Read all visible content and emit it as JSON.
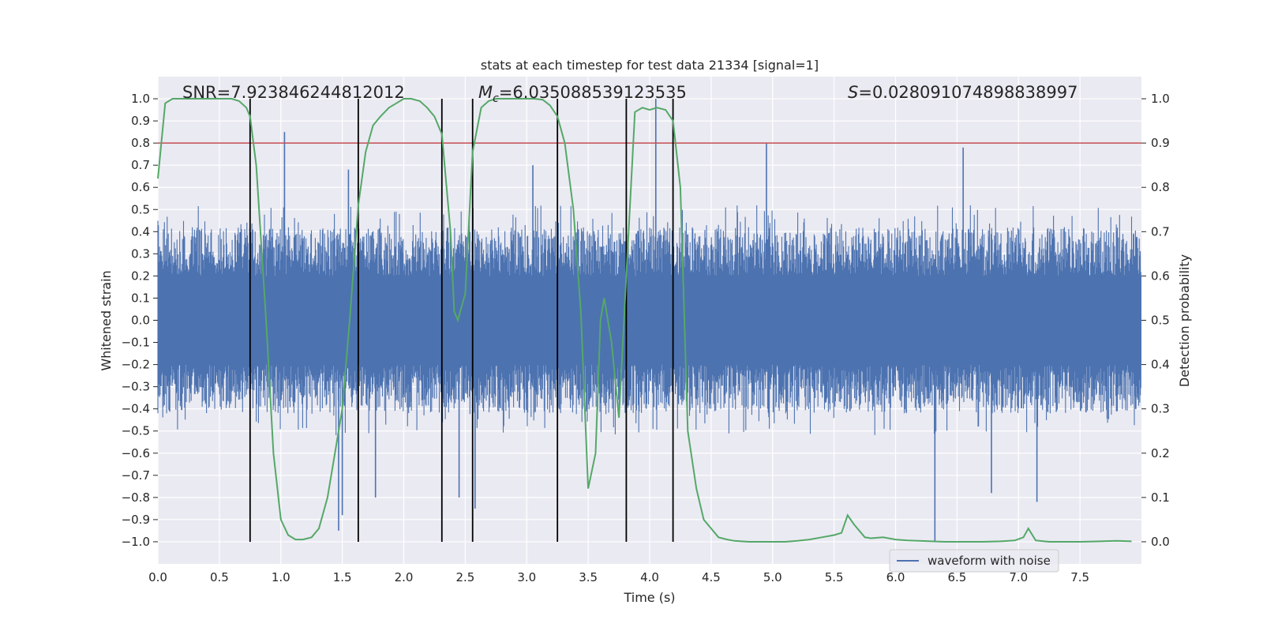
{
  "chart_data": {
    "type": "line",
    "title": "stats at each timestep for test data 21334 [signal=1]",
    "xlabel": "Time (s)",
    "ylabel": "Whitened strain",
    "y2label": "Detection probability",
    "xlim": [
      0.0,
      8.0
    ],
    "ylim": [
      -1.1,
      1.1
    ],
    "y2lim": [
      -0.05,
      1.05
    ],
    "xticks": [
      "0.0",
      "0.5",
      "1.0",
      "1.5",
      "2.0",
      "2.5",
      "3.0",
      "3.5",
      "4.0",
      "4.5",
      "5.0",
      "5.5",
      "6.0",
      "6.5",
      "7.0",
      "7.5"
    ],
    "yticks": [
      "1.0",
      "0.9",
      "0.8",
      "0.7",
      "0.6",
      "0.5",
      "0.4",
      "0.3",
      "0.2",
      "0.1",
      "0.0",
      "−0.1",
      "−0.2",
      "−0.3",
      "−0.4",
      "−0.5",
      "−0.6",
      "−0.7",
      "−0.8",
      "−0.9",
      "−1.0"
    ],
    "y2ticks": [
      "1.0",
      "0.9",
      "0.8",
      "0.7",
      "0.6",
      "0.5",
      "0.4",
      "0.3",
      "0.2",
      "0.1",
      "0.0"
    ],
    "grid": true,
    "annotations": {
      "snr": "SNR=7.923846244812012",
      "mc_symbol": "M",
      "mc_subscript": "c",
      "mc_value": "=6.035088539123535",
      "s_symbol": "S",
      "s_value": "=0.028091074898838997"
    },
    "threshold": 0.9,
    "event_markers": [
      0.75,
      1.63,
      2.31,
      2.56,
      3.25,
      3.81,
      4.19
    ],
    "series": [
      {
        "name": "waveform with noise",
        "color": "#4c72b0",
        "kind": "noise-envelope",
        "core_band": [
          -0.2,
          0.2
        ],
        "typical_peak": 0.42,
        "extreme_positive": [
          [
            1.03,
            0.85
          ],
          [
            4.05,
            1.0
          ],
          [
            4.95,
            0.8
          ],
          [
            6.55,
            0.78
          ],
          [
            1.55,
            0.68
          ],
          [
            3.05,
            0.7
          ]
        ],
        "extreme_negative": [
          [
            6.32,
            -1.0
          ],
          [
            1.47,
            -0.95
          ],
          [
            1.5,
            -0.88
          ],
          [
            2.58,
            -0.85
          ],
          [
            2.45,
            -0.8
          ],
          [
            7.15,
            -0.82
          ],
          [
            1.77,
            -0.8
          ],
          [
            6.78,
            -0.78
          ]
        ]
      },
      {
        "name": "",
        "color": "#55a868",
        "axis": "right",
        "x": [
          0.0,
          0.06,
          0.12,
          0.2,
          0.3,
          0.4,
          0.5,
          0.6,
          0.66,
          0.72,
          0.75,
          0.8,
          0.88,
          0.94,
          1.0,
          1.06,
          1.12,
          1.18,
          1.25,
          1.31,
          1.38,
          1.44,
          1.5,
          1.56,
          1.63,
          1.69,
          1.75,
          1.81,
          1.88,
          1.94,
          2.0,
          2.06,
          2.13,
          2.19,
          2.25,
          2.31,
          2.38,
          2.41,
          2.44,
          2.5,
          2.56,
          2.63,
          2.69,
          2.75,
          2.81,
          2.88,
          2.94,
          3.0,
          3.06,
          3.13,
          3.19,
          3.25,
          3.31,
          3.38,
          3.44,
          3.5,
          3.56,
          3.6,
          3.63,
          3.69,
          3.75,
          3.81,
          3.88,
          3.94,
          4.0,
          4.06,
          4.13,
          4.19,
          4.25,
          4.31,
          4.38,
          4.44,
          4.5,
          4.56,
          4.63,
          4.69,
          4.75,
          4.81,
          4.9,
          5.0,
          5.1,
          5.2,
          5.3,
          5.4,
          5.5,
          5.56,
          5.61,
          5.66,
          5.75,
          5.8,
          5.9,
          6.0,
          6.1,
          6.3,
          6.4,
          6.5,
          6.7,
          6.85,
          6.97,
          7.04,
          7.08,
          7.14,
          7.25,
          7.5,
          7.8,
          7.92
        ],
        "y": [
          0.82,
          0.99,
          1.0,
          1.0,
          1.0,
          1.0,
          1.0,
          1.0,
          0.995,
          0.98,
          0.96,
          0.85,
          0.5,
          0.2,
          0.05,
          0.015,
          0.005,
          0.005,
          0.01,
          0.03,
          0.1,
          0.2,
          0.3,
          0.5,
          0.76,
          0.88,
          0.94,
          0.96,
          0.98,
          0.99,
          1.0,
          1.0,
          0.995,
          0.98,
          0.96,
          0.92,
          0.7,
          0.52,
          0.5,
          0.56,
          0.88,
          0.98,
          0.995,
          1.0,
          1.0,
          1.0,
          1.0,
          1.0,
          1.0,
          0.998,
          0.985,
          0.96,
          0.9,
          0.75,
          0.52,
          0.12,
          0.2,
          0.5,
          0.55,
          0.45,
          0.28,
          0.6,
          0.97,
          0.98,
          0.975,
          0.98,
          0.975,
          0.95,
          0.8,
          0.25,
          0.12,
          0.05,
          0.03,
          0.01,
          0.005,
          0.002,
          0.001,
          0.0,
          0.0,
          0.0,
          0.0,
          0.002,
          0.005,
          0.01,
          0.015,
          0.02,
          0.06,
          0.04,
          0.01,
          0.008,
          0.01,
          0.005,
          0.003,
          0.001,
          0.0,
          0.0,
          0.0,
          0.001,
          0.003,
          0.01,
          0.03,
          0.003,
          0.0,
          0.0,
          0.002,
          0.001
        ]
      }
    ],
    "legend": {
      "placement": "lower-right",
      "entries": [
        "waveform with noise"
      ]
    }
  }
}
